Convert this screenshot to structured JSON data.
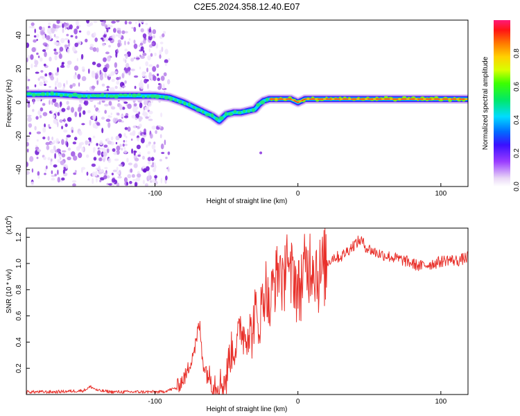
{
  "title": "C2E5.2024.358.12.40.E07",
  "chart_data": [
    {
      "type": "heatmap",
      "xlabel": "Height of straight line (km)",
      "ylabel": "Frequency (Hz)",
      "xlim": [
        -190,
        119
      ],
      "ylim": [
        -50,
        49
      ],
      "xticks": [
        -100,
        0,
        100
      ],
      "yticks": [
        -40,
        -20,
        0,
        20,
        40
      ],
      "ridge_x": [
        -190,
        -170,
        -150,
        -130,
        -110,
        -100,
        -90,
        -80,
        -70,
        -60,
        -55,
        -50,
        -45,
        -40,
        -35,
        -30,
        -27,
        -24,
        -20,
        -15,
        -10,
        -5,
        0,
        5,
        10,
        20,
        40,
        60,
        80,
        95,
        100,
        119
      ],
      "ridge_y": [
        5,
        5,
        4,
        4,
        4,
        4,
        3,
        0,
        -4,
        -8,
        -11,
        -7,
        -6,
        -6,
        -5,
        -4,
        -1,
        1,
        2,
        2,
        2,
        2,
        0,
        2,
        2,
        2,
        2,
        2,
        2,
        2,
        2,
        2
      ],
      "noise_region_x": [
        -190,
        -90
      ],
      "colorbar": {
        "label": "Normalized spectral amplitude",
        "ticks": [
          "0.0",
          "0.2",
          "0.4",
          "0.6",
          "0.8"
        ],
        "range": [
          0,
          1
        ]
      }
    },
    {
      "type": "line",
      "xlabel": "Height of straight line (km)",
      "ylabel": "SNR (10 * v/v)",
      "scale_label": "(x10",
      "scale_exp": "4",
      "xlim": [
        -190,
        119
      ],
      "ylim": [
        0,
        1.27
      ],
      "xticks": [
        -100,
        0,
        100
      ],
      "yticks": [
        "0.2",
        "0.4",
        "0.6",
        "0.8",
        "1.0",
        "1.2"
      ],
      "series_color": "#e8302a",
      "x": [
        -190,
        -170,
        -150,
        -145,
        -140,
        -130,
        -110,
        -95,
        -85,
        -78,
        -74,
        -71,
        -69,
        -67,
        -65,
        -60,
        -55,
        -52,
        -50,
        -48,
        -45,
        -42,
        -40,
        -38,
        -35,
        -32,
        -30,
        -28,
        -25,
        -22,
        -20,
        -18,
        -15,
        -12,
        -10,
        -8,
        -6,
        -4,
        -2,
        0,
        3,
        6,
        10,
        15,
        20,
        25,
        30,
        35,
        40,
        44,
        48,
        55,
        65,
        75,
        85,
        95,
        105,
        112,
        119
      ],
      "y": [
        0.02,
        0.02,
        0.03,
        0.06,
        0.03,
        0.02,
        0.02,
        0.02,
        0.05,
        0.15,
        0.3,
        0.4,
        0.55,
        0.3,
        0.2,
        0.1,
        0.08,
        0.1,
        0.12,
        0.3,
        0.35,
        0.4,
        0.55,
        0.45,
        0.5,
        0.45,
        0.65,
        0.5,
        0.7,
        0.85,
        0.6,
        0.8,
        0.9,
        1.0,
        0.7,
        1.25,
        0.8,
        0.95,
        0.9,
        0.75,
        0.9,
        0.95,
        1.05,
        0.9,
        1.0,
        1.05,
        1.05,
        1.1,
        1.15,
        1.18,
        1.12,
        1.08,
        1.05,
        1.02,
        0.98,
        1.0,
        1.03,
        1.02,
        1.05
      ]
    }
  ]
}
